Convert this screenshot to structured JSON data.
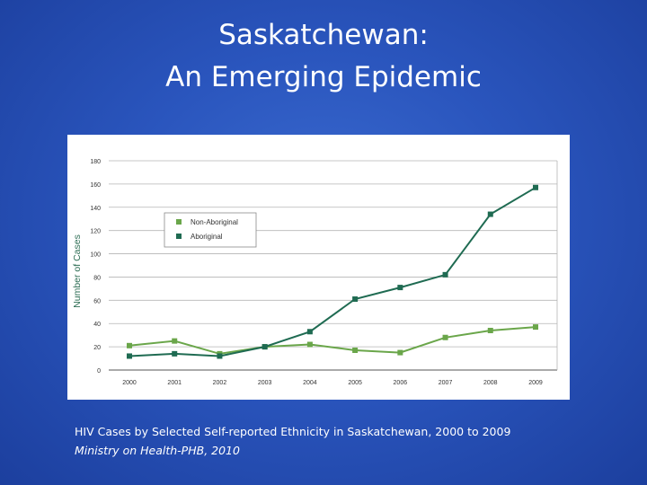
{
  "slide": {
    "title_line1": "Saskatchewan:",
    "title_line2": "An Emerging Epidemic",
    "caption": "HIV Cases by Selected Self-reported Ethnicity in Saskatchewan, 2000 to 2009",
    "source": "Ministry on Health-PHB, 2010"
  },
  "chart_data": {
    "type": "line",
    "title": "",
    "xlabel": "",
    "ylabel": "Number of Cases",
    "x": [
      "2000",
      "2001",
      "2002",
      "2003",
      "2004",
      "2005",
      "2006",
      "2007",
      "2008",
      "2009"
    ],
    "ylim": [
      0,
      180
    ],
    "yticks": [
      0,
      20,
      40,
      60,
      80,
      100,
      120,
      140,
      160,
      180
    ],
    "grid": true,
    "legend_position": "upper-left",
    "series": [
      {
        "name": "Non-Aboriginal",
        "color": "#6aa64a",
        "values": [
          21,
          25,
          14,
          20,
          22,
          17,
          15,
          28,
          34,
          37
        ]
      },
      {
        "name": "Aboriginal",
        "color": "#1f6b52",
        "values": [
          12,
          14,
          12,
          20,
          33,
          61,
          71,
          82,
          134,
          157
        ]
      }
    ]
  }
}
